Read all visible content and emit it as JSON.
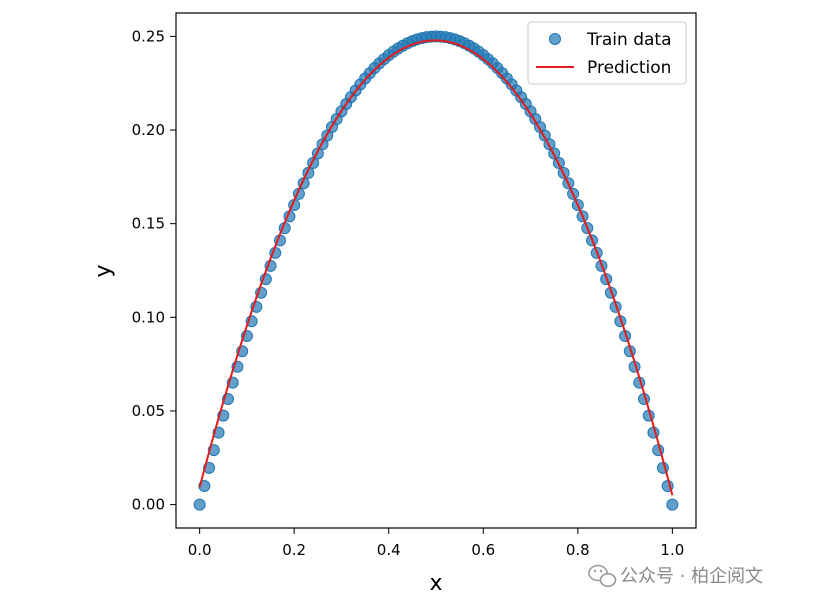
{
  "chart_data": {
    "type": "scatter",
    "title": "",
    "xlabel": "x",
    "ylabel": "y",
    "xlim": [
      -0.05,
      1.05
    ],
    "ylim": [
      -0.0125,
      0.2625
    ],
    "x_ticks": [
      0.0,
      0.2,
      0.4,
      0.6,
      0.8,
      1.0
    ],
    "x_tick_labels": [
      "0.0",
      "0.2",
      "0.4",
      "0.6",
      "0.8",
      "1.0"
    ],
    "y_ticks": [
      0.0,
      0.05,
      0.1,
      0.15,
      0.2,
      0.25
    ],
    "y_tick_labels": [
      "0.00",
      "0.05",
      "0.10",
      "0.15",
      "0.20",
      "0.25"
    ],
    "grid": false,
    "legend_position": "top-right",
    "series": [
      {
        "name": "Train data",
        "kind": "scatter",
        "color": "#1f77b4",
        "formula": "y = x * (1 - x)",
        "n_points": 101,
        "x_start": 0.0,
        "x_end": 1.0
      },
      {
        "name": "Prediction",
        "kind": "line",
        "color": "#e41a1c",
        "formula": "y = 0.00925 + 0.9630 * x * (1 - x) - 0.00425 * x",
        "x_start": 0.0,
        "x_end": 1.0,
        "y_at_start": 0.0093,
        "y_at_peak": 0.25,
        "y_at_end": 0.005
      }
    ]
  },
  "watermark": {
    "text": "公众号 · 柏企阅文",
    "icon": "wechat-icon"
  }
}
